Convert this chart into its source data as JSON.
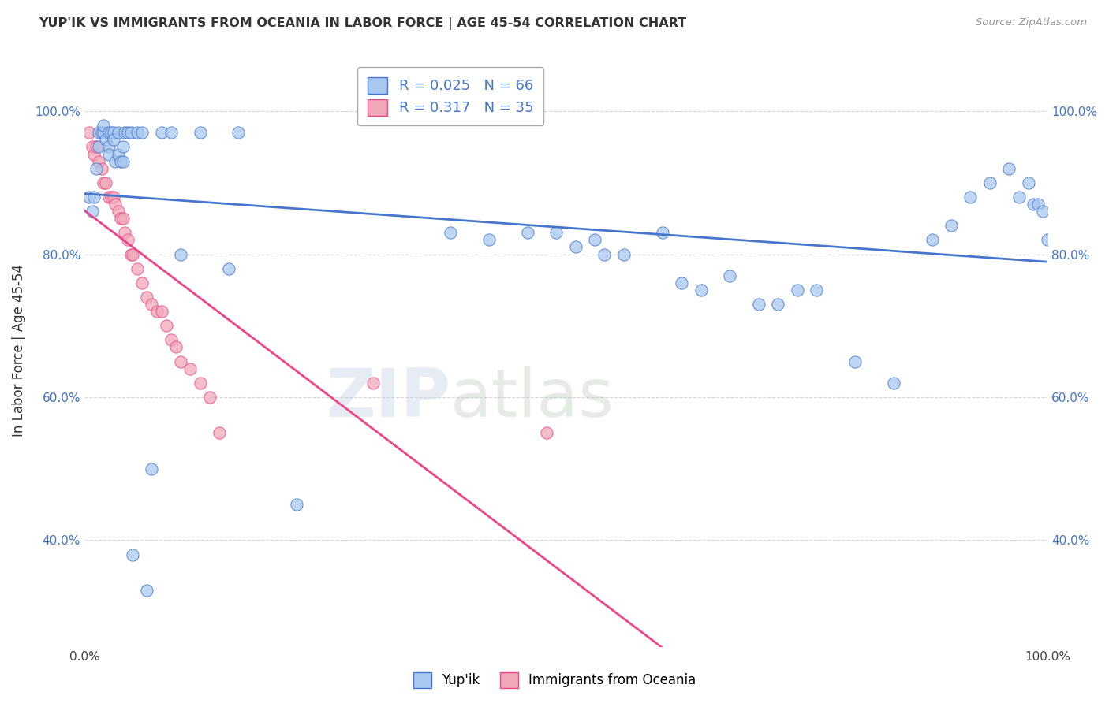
{
  "title": "YUP'IK VS IMMIGRANTS FROM OCEANIA IN LABOR FORCE | AGE 45-54 CORRELATION CHART",
  "source": "Source: ZipAtlas.com",
  "ylabel": "In Labor Force | Age 45-54",
  "xlim": [
    0.0,
    1.0
  ],
  "ylim": [
    0.25,
    1.08
  ],
  "ytick_labels": [
    "40.0%",
    "60.0%",
    "80.0%",
    "100.0%"
  ],
  "ytick_values": [
    0.4,
    0.6,
    0.8,
    1.0
  ],
  "xtick_labels": [
    "0.0%",
    "",
    "",
    "",
    "",
    "",
    "",
    "",
    "",
    "",
    "100.0%"
  ],
  "xtick_values": [
    0.0,
    0.1,
    0.2,
    0.3,
    0.4,
    0.5,
    0.6,
    0.7,
    0.8,
    0.9,
    1.0
  ],
  "r_blue": 0.025,
  "n_blue": 66,
  "r_pink": 0.317,
  "n_pink": 35,
  "blue_color": "#a8c8f0",
  "pink_color": "#f0a8b8",
  "blue_line_color": "#4477cc",
  "pink_line_color": "#ee4488",
  "legend_label_blue": "Yup'ik",
  "legend_label_pink": "Immigrants from Oceania",
  "blue_scatter_x": [
    0.005,
    0.008,
    0.01,
    0.012,
    0.015,
    0.015,
    0.018,
    0.02,
    0.02,
    0.022,
    0.025,
    0.025,
    0.025,
    0.028,
    0.03,
    0.03,
    0.032,
    0.035,
    0.035,
    0.038,
    0.04,
    0.04,
    0.042,
    0.045,
    0.048,
    0.05,
    0.055,
    0.06,
    0.065,
    0.07,
    0.08,
    0.09,
    0.1,
    0.12,
    0.15,
    0.16,
    0.22,
    0.38,
    0.42,
    0.46,
    0.49,
    0.51,
    0.53,
    0.54,
    0.56,
    0.6,
    0.62,
    0.64,
    0.67,
    0.7,
    0.72,
    0.74,
    0.76,
    0.8,
    0.84,
    0.88,
    0.9,
    0.92,
    0.94,
    0.96,
    0.97,
    0.98,
    0.985,
    0.99,
    0.995,
    1.0
  ],
  "blue_scatter_y": [
    0.88,
    0.86,
    0.88,
    0.92,
    0.97,
    0.95,
    0.97,
    0.97,
    0.98,
    0.96,
    0.95,
    0.97,
    0.94,
    0.97,
    0.97,
    0.96,
    0.93,
    0.97,
    0.94,
    0.93,
    0.95,
    0.93,
    0.97,
    0.97,
    0.97,
    0.38,
    0.97,
    0.97,
    0.33,
    0.5,
    0.97,
    0.97,
    0.8,
    0.97,
    0.78,
    0.97,
    0.45,
    0.83,
    0.82,
    0.83,
    0.83,
    0.81,
    0.82,
    0.8,
    0.8,
    0.83,
    0.76,
    0.75,
    0.77,
    0.73,
    0.73,
    0.75,
    0.75,
    0.65,
    0.62,
    0.82,
    0.84,
    0.88,
    0.9,
    0.92,
    0.88,
    0.9,
    0.87,
    0.87,
    0.86,
    0.82
  ],
  "pink_scatter_x": [
    0.005,
    0.008,
    0.01,
    0.012,
    0.015,
    0.018,
    0.02,
    0.022,
    0.025,
    0.028,
    0.03,
    0.032,
    0.035,
    0.038,
    0.04,
    0.042,
    0.045,
    0.048,
    0.05,
    0.055,
    0.06,
    0.065,
    0.07,
    0.075,
    0.08,
    0.085,
    0.09,
    0.095,
    0.1,
    0.11,
    0.12,
    0.13,
    0.14,
    0.3,
    0.48
  ],
  "pink_scatter_y": [
    0.97,
    0.95,
    0.94,
    0.95,
    0.93,
    0.92,
    0.9,
    0.9,
    0.88,
    0.88,
    0.88,
    0.87,
    0.86,
    0.85,
    0.85,
    0.83,
    0.82,
    0.8,
    0.8,
    0.78,
    0.76,
    0.74,
    0.73,
    0.72,
    0.72,
    0.7,
    0.68,
    0.67,
    0.65,
    0.64,
    0.62,
    0.6,
    0.55,
    0.62,
    0.55
  ]
}
